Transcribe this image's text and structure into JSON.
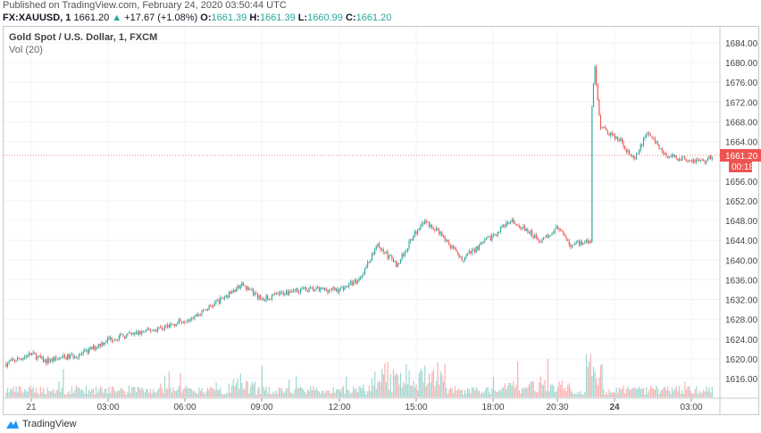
{
  "published": "Published on TradingView.com, February 24, 2020 03:50:44 UTC",
  "legend": {
    "symbol": "FX:XAUUSD, 1",
    "last": "1661.20",
    "change": "+17.67 (+1.08%)",
    "o_label": "O:",
    "o": "1661.39",
    "h_label": "H:",
    "h": "1661.39",
    "l_label": "L:",
    "l": "1660.99",
    "c_label": "C:",
    "c": "1661.20"
  },
  "chart_title": "Gold Spot / U.S. Dollar, 1, FXCM",
  "volume_label": "Vol (20)",
  "footer_brand": "TradingView",
  "colors": {
    "up": "#26a69a",
    "down": "#ef5350",
    "price_tag": "#ef5350",
    "grid": "#f0f3fa"
  },
  "icons": {
    "change_arrow": "triangle-up-icon",
    "brand": "tradingview-logo-icon"
  },
  "chart_data": {
    "type": "candlestick",
    "title": "Gold Spot / U.S. Dollar, 1, FXCM",
    "y_ticks": [
      "1684.00",
      "1680.00",
      "1676.00",
      "1672.00",
      "1668.00",
      "1664.00",
      "1656.00",
      "1652.00",
      "1648.00",
      "1644.00",
      "1640.00",
      "1636.00",
      "1632.00",
      "1628.00",
      "1624.00",
      "1620.00",
      "1616.00"
    ],
    "ylim": [
      1612,
      1686
    ],
    "x_ticks": [
      "21",
      "03:00",
      "06:00",
      "09:00",
      "12:00",
      "15:00",
      "18:00",
      "20:30",
      "24",
      "03:00"
    ],
    "last_price": "1661.20",
    "countdown": "00:18",
    "grid": true,
    "price_path": [
      [
        "Feb 20 23:00",
        1619
      ],
      [
        "Feb 21 00:00",
        1621
      ],
      [
        "Feb 21 00:30",
        1619.5
      ],
      [
        "Feb 21 02:00",
        1621
      ],
      [
        "Feb 21 03:00",
        1624
      ],
      [
        "Feb 21 04:00",
        1625
      ],
      [
        "Feb 21 05:15",
        1626.5
      ],
      [
        "Feb 21 06:30",
        1629
      ],
      [
        "Feb 21 08:15",
        1635
      ],
      [
        "Feb 21 09:00",
        1632
      ],
      [
        "Feb 21 10:15",
        1634
      ],
      [
        "Feb 21 12:00",
        1634
      ],
      [
        "Feb 21 12:45",
        1636
      ],
      [
        "Feb 21 13:30",
        1643
      ],
      [
        "Feb 21 14:15",
        1639
      ],
      [
        "Feb 21 15:15",
        1648
      ],
      [
        "Feb 21 16:00",
        1645
      ],
      [
        "Feb 21 16:45",
        1640
      ],
      [
        "Feb 21 17:45",
        1644
      ],
      [
        "Feb 21 18:45",
        1648
      ],
      [
        "Feb 21 19:50",
        1644
      ],
      [
        "Feb 21 20:30",
        1646.5
      ],
      [
        "Feb 21 21:00",
        1643
      ],
      [
        "Feb 21 21:50",
        1644
      ],
      [
        "Feb 23 23:00",
        1661
      ],
      [
        "Feb 23 23:12",
        1680
      ],
      [
        "Feb 23 23:25",
        1667
      ],
      [
        "Feb 24 00:15",
        1664
      ],
      [
        "Feb 24 00:45",
        1660
      ],
      [
        "Feb 24 01:15",
        1666
      ],
      [
        "Feb 24 02:00",
        1661
      ],
      [
        "Feb 24 03:30",
        1660
      ],
      [
        "Feb 24 03:50",
        1661.2
      ]
    ]
  }
}
